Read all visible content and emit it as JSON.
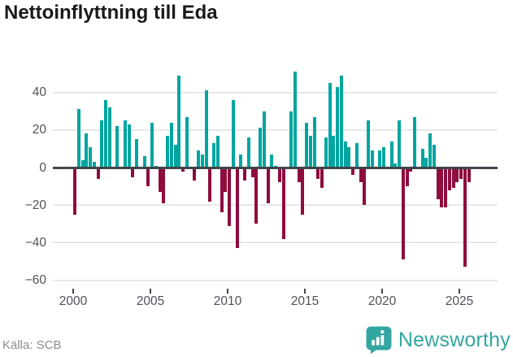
{
  "title": "Nettoinflyttning till Eda",
  "source": "Källa: SCB",
  "logo": {
    "text": "Newsworthy"
  },
  "colors": {
    "positive": "#00a5a0",
    "negative": "#8e0c3e",
    "zero_line": "#3f4549",
    "gridline": "#e8e8e8",
    "title": "#1a1a1a",
    "tick": "#4e525a",
    "source": "#8c8c96",
    "logo": "#33a6a1"
  },
  "chart_data": {
    "type": "bar",
    "title": "Nettoinflyttning till Eda",
    "source": "Källa: SCB",
    "x_unit": "quarter",
    "start_year": 2000,
    "start_quarter": "2000Q1",
    "end_quarter": "2025Q3",
    "xlabel": "",
    "ylabel": "",
    "grid": true,
    "legend": false,
    "ylim": [
      -64,
      53
    ],
    "yticks": [
      40,
      20,
      0,
      -20,
      -40,
      -60
    ],
    "ytick_labels": [
      "40",
      "20",
      "0",
      "−20",
      "−40",
      "−60"
    ],
    "xticks": [
      2000,
      2005,
      2010,
      2015,
      2020,
      2025
    ],
    "xtick_labels": [
      "2000",
      "2005",
      "2010",
      "2015",
      "2020",
      "2025"
    ],
    "values": [
      -25,
      31,
      4,
      18,
      11,
      3,
      -6,
      25,
      36,
      32,
      0,
      22,
      0,
      25,
      23,
      -5,
      15,
      0,
      6,
      -10,
      24,
      1,
      -13,
      -19,
      17,
      24,
      12,
      49,
      -2,
      27,
      0,
      -7,
      9,
      7,
      41,
      -18,
      13,
      17,
      -24,
      -13,
      -31,
      36,
      -43,
      7,
      -7,
      16,
      -5,
      -30,
      21,
      30,
      -19,
      7,
      1,
      -8,
      -38,
      0,
      30,
      51,
      -8,
      -25,
      24,
      17,
      27,
      -6,
      -11,
      16,
      45,
      17,
      43,
      49,
      14,
      11,
      -4,
      13,
      -8,
      -20,
      25,
      9,
      0,
      9,
      11,
      0,
      14,
      2,
      25,
      -49,
      -10,
      -2,
      27,
      0,
      10,
      5,
      18,
      12,
      -17,
      -21,
      -21,
      -12,
      -11,
      -8,
      -6,
      -53,
      -8
    ]
  }
}
